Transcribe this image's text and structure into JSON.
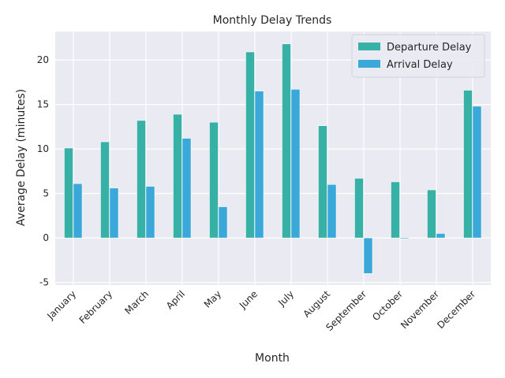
{
  "chart_data": {
    "type": "bar",
    "title": "Monthly Delay Trends",
    "xlabel": "Month",
    "ylabel": "Average Delay (minutes)",
    "categories": [
      "January",
      "February",
      "March",
      "April",
      "May",
      "June",
      "July",
      "August",
      "September",
      "October",
      "November",
      "December"
    ],
    "series": [
      {
        "name": "Departure Delay",
        "color": "#37b0a5",
        "values": [
          10.1,
          10.8,
          13.2,
          13.9,
          13.0,
          20.9,
          21.8,
          12.6,
          6.7,
          6.3,
          5.4,
          16.6
        ]
      },
      {
        "name": "Arrival Delay",
        "color": "#3aa8d8",
        "values": [
          6.1,
          5.6,
          5.8,
          11.2,
          3.5,
          16.5,
          16.7,
          6.0,
          -4.0,
          -0.1,
          0.5,
          14.8
        ]
      }
    ],
    "ylim": [
      -5.3,
      23.2
    ],
    "yticks": [
      -5,
      0,
      5,
      10,
      15,
      20
    ],
    "grid": true,
    "legend": "top-right",
    "plot_background": "#eaeaf2"
  }
}
